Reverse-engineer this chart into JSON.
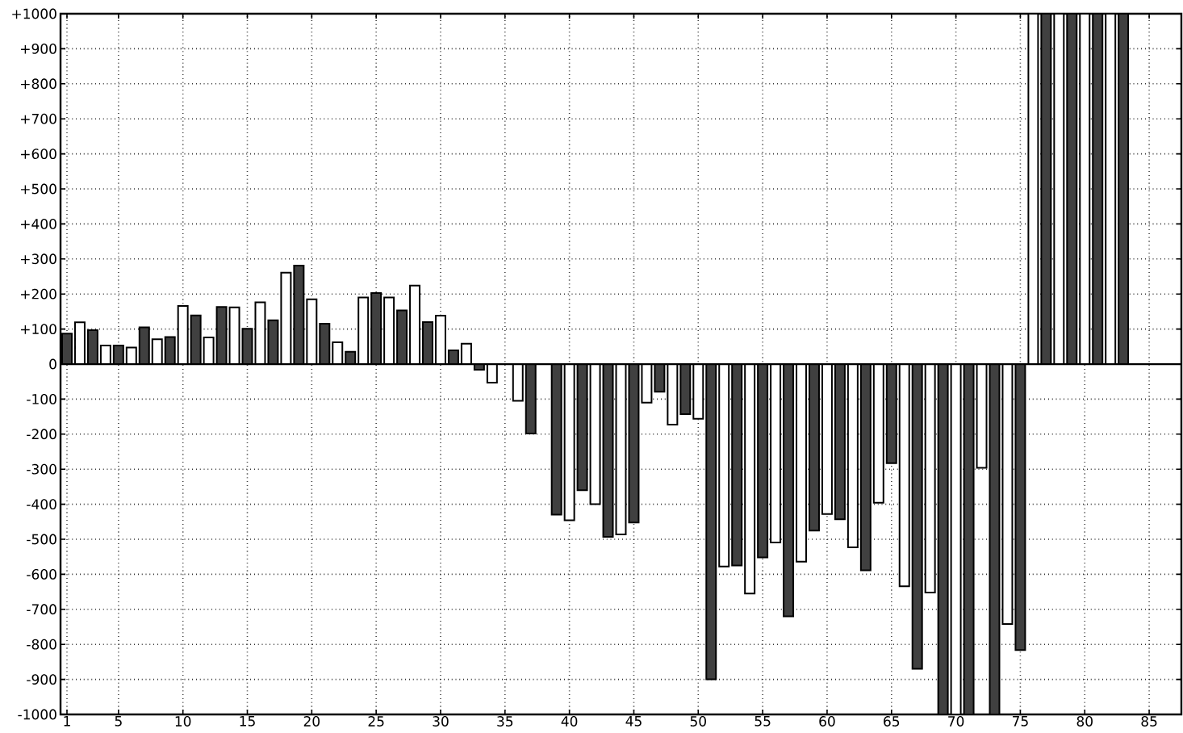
{
  "chart_data": {
    "type": "bar",
    "xlim": [
      0.5,
      87.5
    ],
    "xticks": [
      1,
      5,
      10,
      15,
      20,
      25,
      30,
      35,
      40,
      45,
      50,
      55,
      60,
      65,
      70,
      75,
      80,
      85
    ],
    "ylim": [
      -1000,
      1000
    ],
    "yticks": [
      {
        "value": -1000,
        "label": "-1000"
      },
      {
        "value": -900,
        "label": "-900"
      },
      {
        "value": -800,
        "label": "-800"
      },
      {
        "value": -700,
        "label": "-700"
      },
      {
        "value": -600,
        "label": "-600"
      },
      {
        "value": -500,
        "label": "-500"
      },
      {
        "value": -400,
        "label": "-400"
      },
      {
        "value": -300,
        "label": "-300"
      },
      {
        "value": -200,
        "label": "-200"
      },
      {
        "value": -100,
        "label": "-100"
      },
      {
        "value": 0,
        "label": "0"
      },
      {
        "value": 100,
        "label": "+100"
      },
      {
        "value": 200,
        "label": "+200"
      },
      {
        "value": 300,
        "label": "+300"
      },
      {
        "value": 400,
        "label": "+400"
      },
      {
        "value": 500,
        "label": "+500"
      },
      {
        "value": 600,
        "label": "+600"
      },
      {
        "value": 700,
        "label": "+700"
      },
      {
        "value": 800,
        "label": "+800"
      },
      {
        "value": 900,
        "label": "+900"
      },
      {
        "value": 1000,
        "label": "+1000"
      }
    ],
    "grid": true,
    "line_style": "dotted",
    "ref_lines": [
      {
        "axis": "y",
        "value": 0
      }
    ],
    "series": [
      {
        "color": "#404040",
        "x": [
          1,
          3,
          5,
          7,
          9,
          11,
          13,
          15,
          17,
          19,
          21,
          23,
          25,
          27,
          29,
          31,
          33,
          35,
          37,
          39,
          41,
          43,
          45,
          47,
          49,
          51,
          53,
          55,
          57,
          59,
          61,
          63,
          65,
          67,
          69,
          71,
          73,
          75,
          77,
          79,
          81,
          83
        ],
        "values": [
          87,
          97,
          53,
          105,
          77,
          139,
          163,
          101,
          125,
          281,
          115,
          35,
          203,
          153,
          120,
          39,
          -16,
          null,
          -198,
          -430,
          -360,
          -493,
          -452,
          -79,
          -143,
          -900,
          -575,
          -552,
          -720,
          -475,
          -443,
          -589,
          -283,
          -870,
          -1000,
          -1000,
          -1000,
          -816,
          1000,
          1000,
          1000,
          1000
        ]
      },
      {
        "color": "#ffffff",
        "x": [
          2,
          4,
          6,
          8,
          10,
          12,
          14,
          16,
          18,
          20,
          22,
          24,
          26,
          28,
          30,
          32,
          34,
          36,
          38,
          40,
          42,
          44,
          46,
          48,
          50,
          52,
          54,
          56,
          58,
          60,
          62,
          64,
          66,
          68,
          70,
          72,
          74,
          76,
          78,
          80,
          82
        ],
        "values": [
          119,
          53,
          47,
          71,
          166,
          76,
          162,
          176,
          261,
          185,
          62,
          190,
          190,
          224,
          138,
          58,
          -53,
          -105,
          null,
          -446,
          -400,
          -486,
          -110,
          -173,
          -156,
          -578,
          -655,
          -509,
          -564,
          -428,
          -523,
          -396,
          -634,
          -652,
          -1000,
          -296,
          -742,
          1000,
          1000,
          1000,
          1000
        ]
      }
    ]
  }
}
